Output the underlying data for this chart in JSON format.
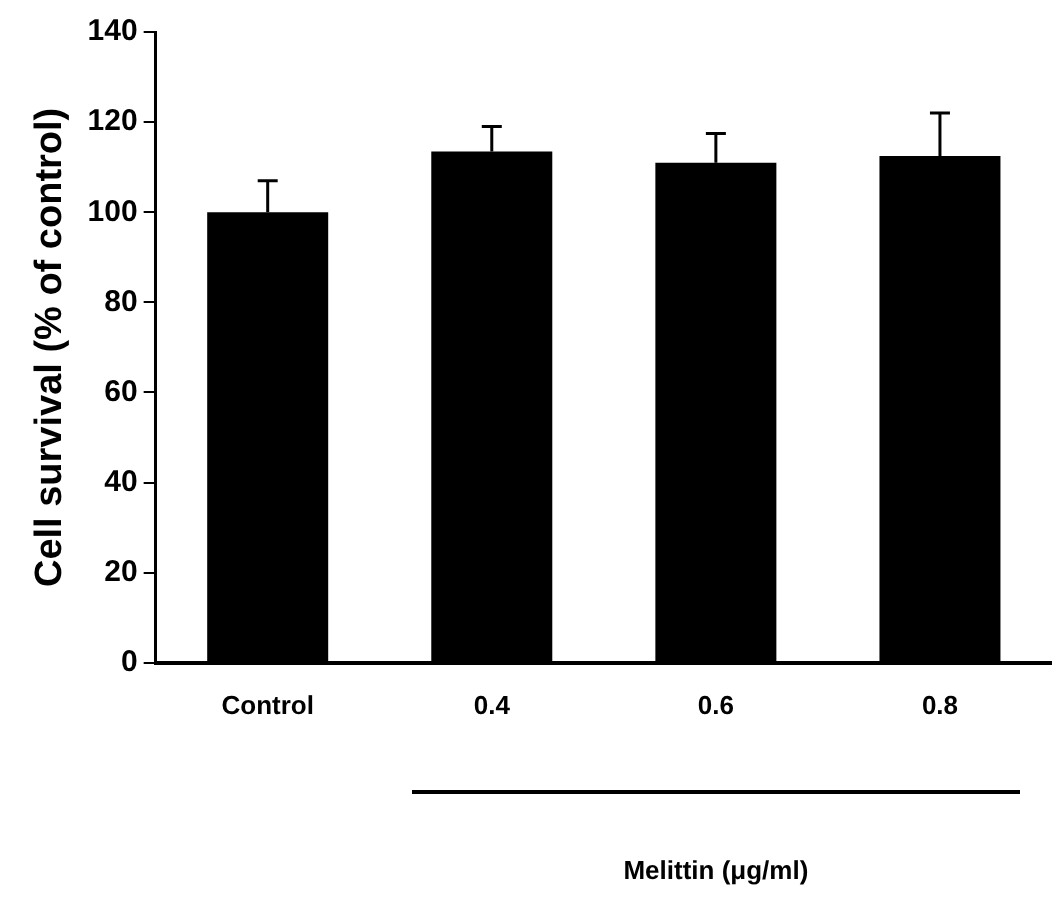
{
  "chart_data": {
    "type": "bar",
    "ylabel": "Cell survival (% of control)",
    "annotations": [
      "Melittin (μg/ml)"
    ],
    "categories": [
      "Control",
      "0.4",
      "0.6",
      "0.8"
    ],
    "values": [
      100,
      113.5,
      111,
      112.5
    ],
    "errors": [
      [
        100,
        107
      ],
      [
        113.5,
        119
      ],
      [
        111,
        117.5
      ],
      [
        112.5,
        122
      ]
    ],
    "color": "#000000",
    "ylim": [
      0,
      140
    ],
    "yticks": [
      0,
      20,
      40,
      60,
      80,
      100,
      120,
      140
    ],
    "grid": false,
    "legend": false
  }
}
